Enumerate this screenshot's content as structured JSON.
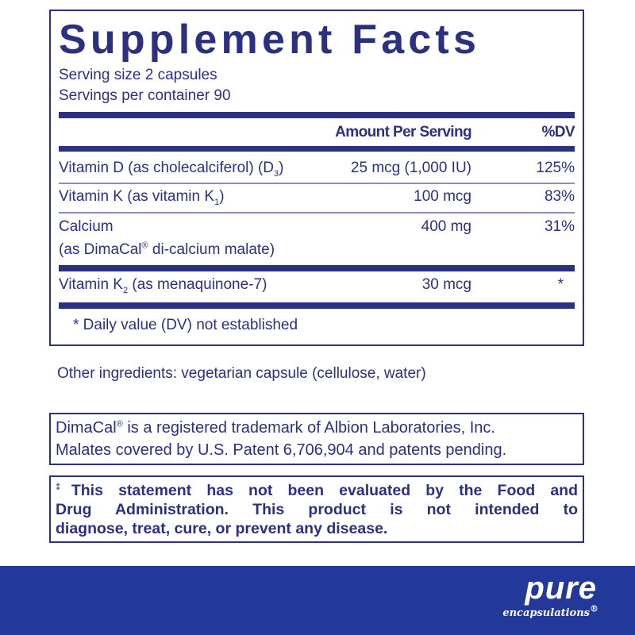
{
  "title": "Supplement Facts",
  "serving_size": "Serving size  2 capsules",
  "servings_per_container": "Servings per container  90",
  "header": {
    "amount": "Amount Per Serving",
    "dv": "%DV"
  },
  "rows": [
    {
      "name": "Vitamin D (as cholecalciferol) (D",
      "sub": "3",
      "tail": ")",
      "amount": "25 mcg (1,000 IU)",
      "dv": "125%"
    },
    {
      "name": "Vitamin K (as vitamin K",
      "sub": "1",
      "tail": ")",
      "amount": "100 mcg",
      "dv": "83%"
    },
    {
      "name": "Calcium",
      "line2a": "(as DimaCal",
      "line2sup": "®",
      "line2b": " di-calcium malate)",
      "amount": "400 mg",
      "dv": "31%"
    },
    {
      "name": "Vitamin K",
      "sub": "2",
      "tail": " (as menaquinone-7)",
      "amount": "30 mcg",
      "dv": "*"
    }
  ],
  "footnote": "* Daily value (DV) not established",
  "other_ingredients": "Other ingredients: vegetarian capsule (cellulose, water)",
  "trademark": {
    "line1a": "DimaCal",
    "line1sup": "®",
    "line1b": " is a registered trademark of Albion Laboratories, Inc.",
    "line2": "Malates covered by U.S. Patent 6,706,904 and patents pending."
  },
  "disclaimer": {
    "mark": "‡",
    "line1": "This statement has not been evaluated by the Food and",
    "line2": "Drug Administration. This product is not intended to",
    "line3": "diagnose, treat, cure, or prevent any disease."
  },
  "brand": {
    "name": "pure",
    "sub": "encapsulations",
    "reg": "®"
  },
  "colors": {
    "text": "#2b3080",
    "band": "#23399a"
  }
}
